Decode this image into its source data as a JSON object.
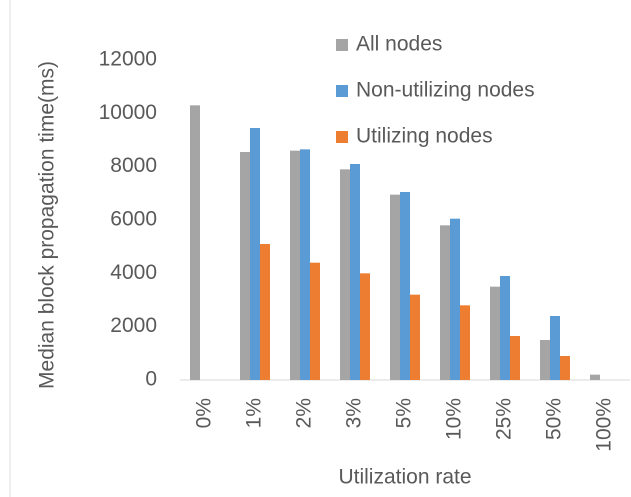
{
  "chart_data": {
    "type": "bar",
    "categories": [
      "0%",
      "1%",
      "2%",
      "3%",
      "5%",
      "10%",
      "25%",
      "50%",
      "100%"
    ],
    "series": [
      {
        "name": "All nodes",
        "color": "#a5a5a5",
        "values": [
          10300,
          8550,
          8600,
          7900,
          6950,
          5800,
          3500,
          1500,
          200
        ]
      },
      {
        "name": "Non-utilizing nodes",
        "color": "#5b9bd5",
        "values": [
          null,
          9450,
          8650,
          8100,
          7050,
          6050,
          3900,
          2400,
          null
        ]
      },
      {
        "name": "Utilizing nodes",
        "color": "#ed7d31",
        "values": [
          null,
          5100,
          4400,
          4000,
          3200,
          2800,
          1650,
          900,
          null
        ]
      }
    ],
    "xlabel": "Utilization rate",
    "ylabel": "Median block propagation time(ms)",
    "ylim": [
      0,
      12000
    ],
    "yticks": [
      0,
      2000,
      4000,
      6000,
      8000,
      10000,
      12000
    ],
    "grid": false
  }
}
